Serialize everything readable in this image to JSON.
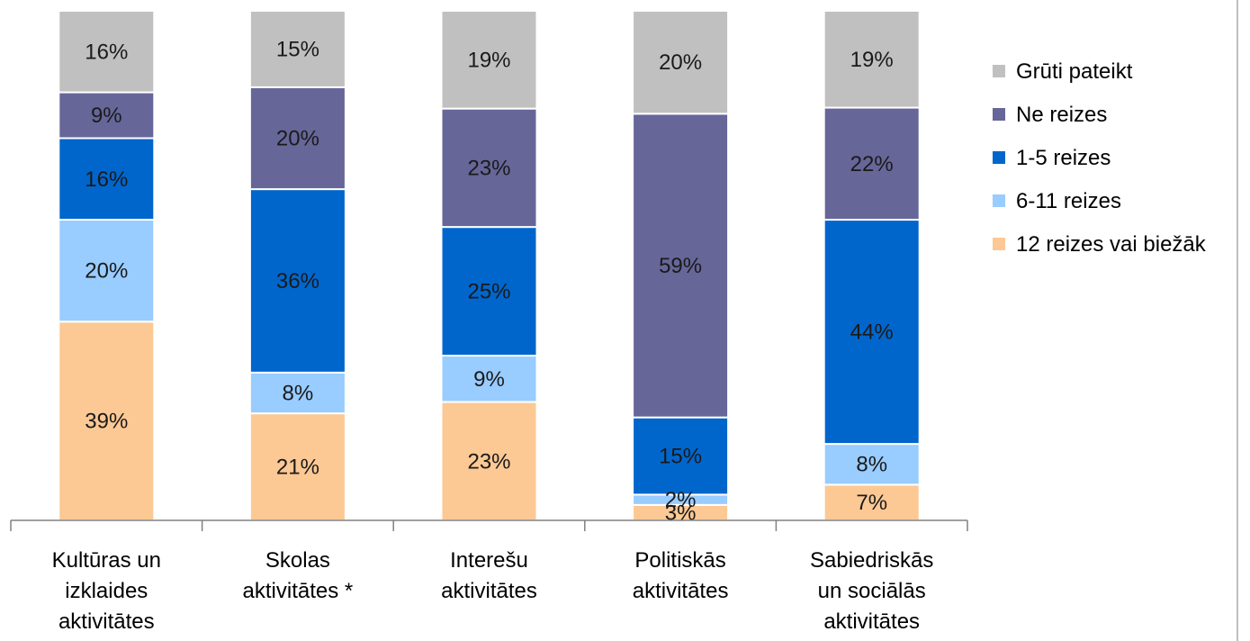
{
  "chart_data": {
    "type": "bar",
    "stacked": true,
    "percent": true,
    "categories": [
      "Kultūras un izklaides aktivitātes",
      "Skolas aktivitātes *",
      "Interešu aktivitātes",
      "Politiskās aktivitātes",
      "Sabiedriskās un sociālās aktivitātes"
    ],
    "category_lines": [
      [
        "Kultūras un",
        "izklaides",
        "aktivitātes"
      ],
      [
        "Skolas",
        "aktivitātes *"
      ],
      [
        "Interešu",
        "aktivitātes"
      ],
      [
        "Politiskās",
        "aktivitātes"
      ],
      [
        "Sabiedriskās",
        "un sociālās",
        "aktivitātes"
      ]
    ],
    "series": [
      {
        "name": "12 reizes vai biežāk",
        "color": "#fcc894",
        "values": [
          39,
          21,
          23,
          3,
          7
        ]
      },
      {
        "name": "6-11 reizes",
        "color": "#99ccff",
        "values": [
          20,
          8,
          9,
          2,
          8
        ]
      },
      {
        "name": "1-5 reizes",
        "color": "#0066cc",
        "values": [
          16,
          36,
          25,
          15,
          44
        ]
      },
      {
        "name": "Ne reizes",
        "color": "#666699",
        "values": [
          9,
          20,
          23,
          59,
          22
        ]
      },
      {
        "name": "Grūti pateikt",
        "color": "#c0c0c0",
        "values": [
          16,
          15,
          19,
          20,
          19
        ]
      }
    ],
    "data_labels": [
      [
        "39%",
        "21%",
        "23%",
        "3%",
        "7%"
      ],
      [
        "20%",
        "8%",
        "9%",
        "2%",
        "8%"
      ],
      [
        "16%",
        "36%",
        "25%",
        "15%",
        "44%"
      ],
      [
        "9%",
        "20%",
        "23%",
        "59%",
        "22%"
      ],
      [
        "16%",
        "15%",
        "19%",
        "20%",
        "19%"
      ]
    ],
    "legend_order": [
      "Grūti pateikt",
      "Ne reizes",
      "1-5 reizes",
      "6-11 reizes",
      "12 reizes vai biežāk"
    ],
    "legend_position": "right",
    "ylim": [
      0,
      100
    ],
    "grid": false
  }
}
